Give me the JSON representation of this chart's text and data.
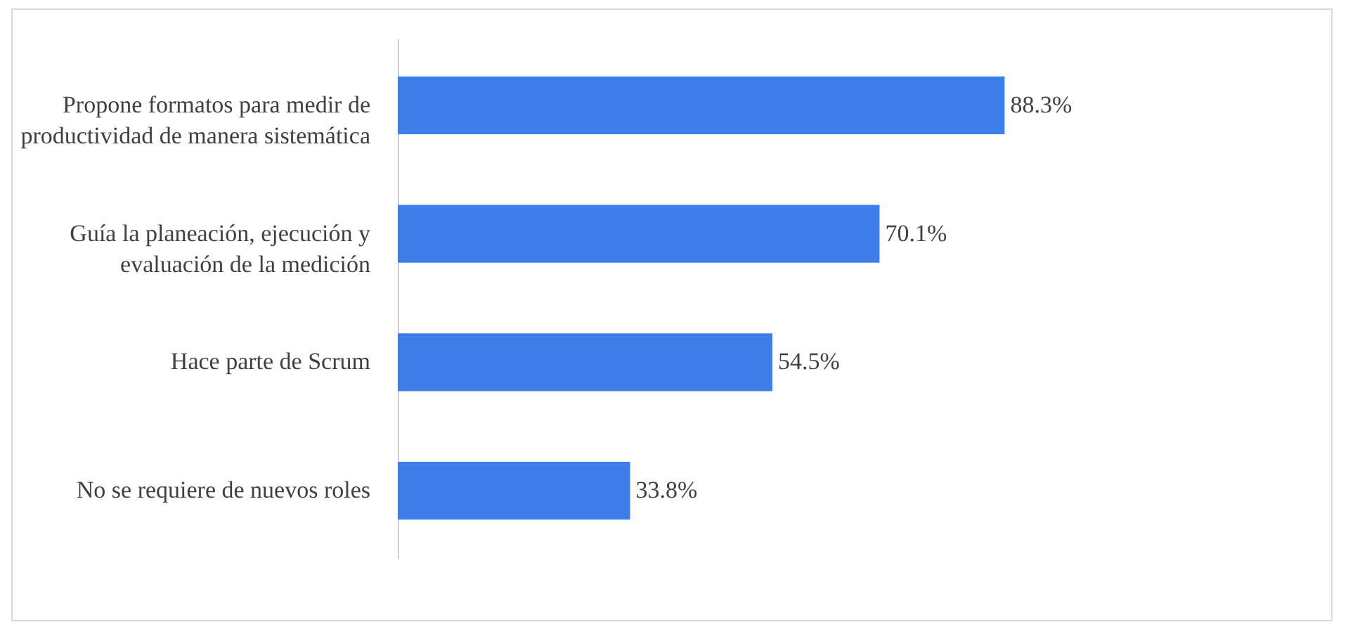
{
  "chart_data": {
    "type": "bar",
    "orientation": "horizontal",
    "categories": [
      "Propone formatos para medir de productividad de manera sistemática",
      "Guía la planeación, ejecución y evaluación de la medición",
      "Hace parte de Scrum",
      "No se requiere de nuevos roles"
    ],
    "values": [
      88.3,
      70.1,
      54.5,
      33.8
    ],
    "color": "#3d7ee8",
    "value_labels": [
      "88.3%",
      "70.1%",
      "54.5%",
      "33.8%"
    ]
  }
}
